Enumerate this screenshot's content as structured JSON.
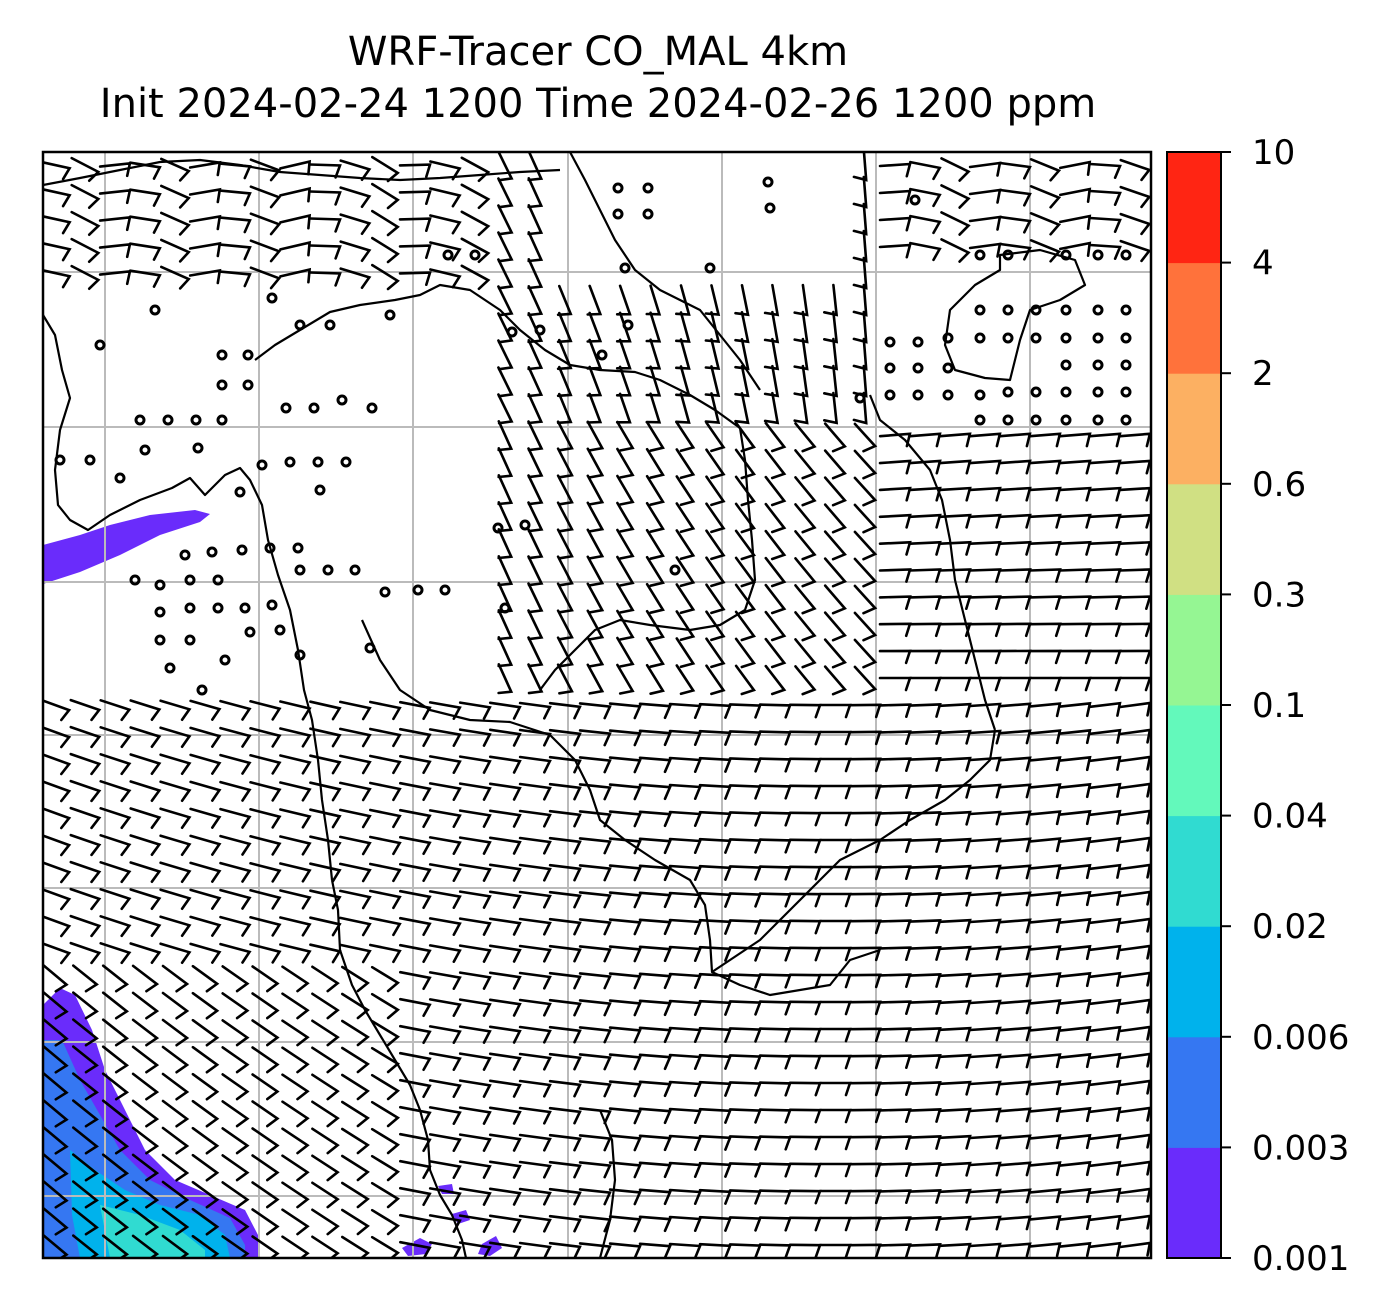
{
  "title": {
    "line1": "WRF-Tracer CO_MAL 4km",
    "line2": "Init 2024-02-24 1200 Time 2024-02-26 1200 ppm"
  },
  "colorbar": {
    "unit": "ppm",
    "levels": [
      "0.001",
      "0.003",
      "0.006",
      "0.02",
      "0.04",
      "0.1",
      "0.3",
      "0.6",
      "2",
      "4",
      "10"
    ],
    "colors": [
      "#6a2cfb",
      "#3577f2",
      "#00b2ec",
      "#30dbd1",
      "#63f9bb",
      "#95f693",
      "#d0e083",
      "#fcb062",
      "#ff723b",
      "#ff2513"
    ]
  },
  "map": {
    "gridlines": true,
    "overlay": "wind-barbs",
    "tracer_areas": [
      {
        "name": "north-west-patch",
        "level": "0.001"
      },
      {
        "name": "south-west-patch",
        "levels": [
          "0.001",
          "0.003",
          "0.006",
          "0.02"
        ]
      },
      {
        "name": "south-coast-specks",
        "level": "0.001"
      }
    ]
  }
}
